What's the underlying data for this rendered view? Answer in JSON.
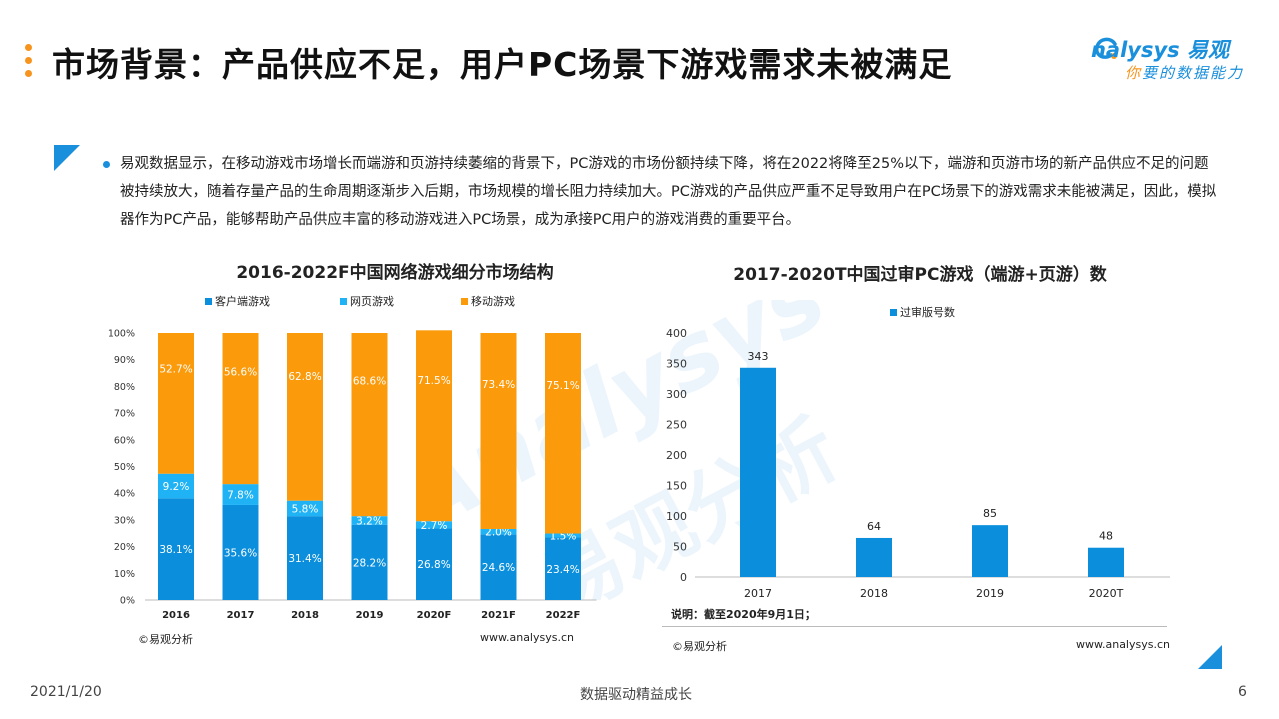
{
  "header": {
    "title": "市场背景：产品供应不足，用户PC场景下游戏需求未被满足",
    "logo_en": "nalysys 易观",
    "logo_cn_hi": "你",
    "logo_cn_rest": "要的数据能力"
  },
  "body": {
    "paragraph": "易观数据显示，在移动游戏市场增长而端游和页游持续萎缩的背景下，PC游戏的市场份额持续下降，将在2022将降至25%以下，端游和页游市场的新产品供应不足的问题被持续放大，随着存量产品的生命周期逐渐步入后期，市场规模的增长阻力持续加大。PC游戏的产品供应严重不足导致用户在PC场景下的游戏需求未能被满足，因此，模拟器作为PC产品，能够帮助产品供应丰富的移动游戏进入PC场景，成为承接PC用户的游戏消费的重要平台。"
  },
  "colors": {
    "client": "#0b8fdc",
    "web": "#1fb3f5",
    "mobile": "#fb9a0a",
    "accent": "#f7941d",
    "brand": "#1a8fdc"
  },
  "chart_data": [
    {
      "type": "bar",
      "stacked": true,
      "title": "2016-2022F中国网络游戏细分市场结构",
      "categories": [
        "2016",
        "2017",
        "2018",
        "2019",
        "2020F",
        "2021F",
        "2022F"
      ],
      "series": [
        {
          "name": "客户端游戏",
          "values": [
            38.1,
            35.6,
            31.4,
            28.2,
            26.8,
            24.6,
            23.4
          ],
          "labels": [
            "38.1%",
            "35.6%",
            "31.4%",
            "28.2%",
            "26.8%",
            "24.6%",
            "23.4%"
          ]
        },
        {
          "name": "网页游戏",
          "values": [
            9.2,
            7.8,
            5.8,
            3.2,
            2.7,
            2.0,
            1.5
          ],
          "labels": [
            "9.2%",
            "7.8%",
            "5.8%",
            "3.2%",
            "2.7%",
            "2.0%",
            "1.5%"
          ]
        },
        {
          "name": "移动游戏",
          "values": [
            52.7,
            56.6,
            62.8,
            68.6,
            71.5,
            73.4,
            75.1
          ],
          "labels": [
            "52.7%",
            "56.6%",
            "62.8%",
            "68.6%",
            "71.5%",
            "73.4%",
            "75.1%"
          ]
        }
      ],
      "yticks": [
        "0%",
        "10%",
        "20%",
        "30%",
        "40%",
        "50%",
        "60%",
        "70%",
        "80%",
        "90%",
        "100%"
      ],
      "ylim": [
        0,
        100
      ],
      "legend": "top",
      "source": "©易观分析",
      "website": "www.analysys.cn"
    },
    {
      "type": "bar",
      "title": "2017-2020T中国过审PC游戏（端游+页游）数",
      "categories": [
        "2017",
        "2018",
        "2019",
        "2020T"
      ],
      "series": [
        {
          "name": "过审版号数",
          "values": [
            343,
            64,
            85,
            48
          ]
        }
      ],
      "yticks": [
        "0",
        "50",
        "100",
        "150",
        "200",
        "250",
        "300",
        "350",
        "400"
      ],
      "ylim": [
        0,
        400
      ],
      "legend": "top",
      "note": "说明：截至2020年9月1日；",
      "source": "©易观分析",
      "website": "www.analysys.cn"
    }
  ],
  "footer": {
    "date": "2021/1/20",
    "slogan": "数据驱动精益成长",
    "page": "6"
  }
}
